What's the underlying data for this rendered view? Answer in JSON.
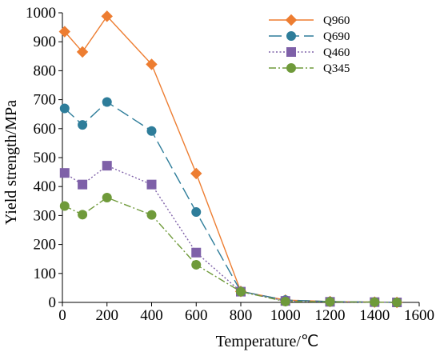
{
  "chart_data": {
    "type": "line",
    "xlabel": "Temperature/℃",
    "ylabel": "Yield strength/MPa",
    "xlim": [
      0,
      1600
    ],
    "ylim": [
      0,
      1000
    ],
    "xticks": [
      0,
      200,
      400,
      600,
      800,
      1000,
      1200,
      1400,
      1600
    ],
    "yticks": [
      0,
      100,
      200,
      300,
      400,
      500,
      600,
      700,
      800,
      900,
      1000
    ],
    "grid": false,
    "legend_position": "top-right",
    "series": [
      {
        "name": "Q960",
        "color": "#ED7D31",
        "marker": "diamond",
        "line_style": "solid",
        "x": [
          10,
          90,
          200,
          400,
          600,
          800,
          1000,
          1200,
          1400,
          1500
        ],
        "y": [
          935,
          865,
          988,
          822,
          445,
          38,
          8,
          3,
          1,
          0
        ]
      },
      {
        "name": "Q690",
        "color": "#2E7D9A",
        "marker": "circle",
        "line_style": "long-dash",
        "x": [
          10,
          90,
          200,
          400,
          600,
          800,
          1000,
          1200,
          1400,
          1500
        ],
        "y": [
          670,
          613,
          692,
          592,
          312,
          38,
          8,
          3,
          1,
          0
        ]
      },
      {
        "name": "Q460",
        "color": "#7E60A8",
        "marker": "square",
        "line_style": "dotted",
        "x": [
          10,
          90,
          200,
          400,
          600,
          800,
          1000,
          1200,
          1400,
          1500
        ],
        "y": [
          447,
          407,
          472,
          407,
          172,
          37,
          5,
          2,
          1,
          0
        ]
      },
      {
        "name": "Q345",
        "color": "#6F9A3A",
        "marker": "circle",
        "line_style": "dash-dot",
        "x": [
          10,
          90,
          200,
          400,
          600,
          800,
          1000,
          1200,
          1400,
          1500
        ],
        "y": [
          333,
          303,
          362,
          302,
          130,
          37,
          3,
          2,
          1,
          0
        ]
      }
    ]
  }
}
